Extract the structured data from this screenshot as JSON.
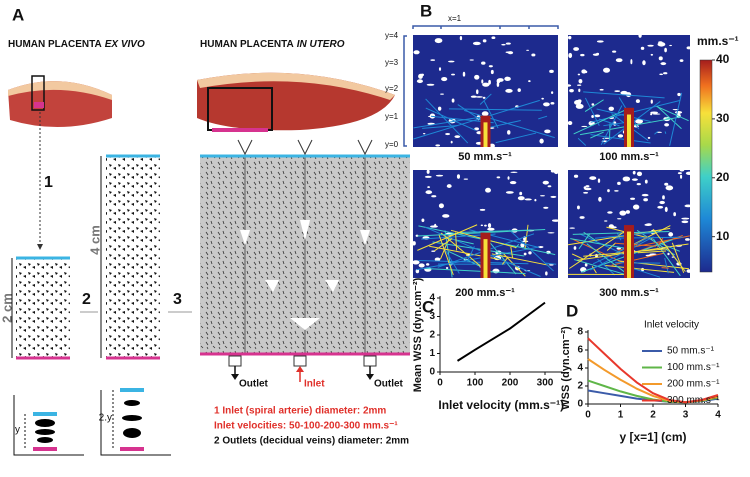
{
  "panel_labels": [
    "A",
    "B",
    "C",
    "D"
  ],
  "panel_a": {
    "title_ex_vivo": {
      "text": "HUMAN PLACENTA",
      "italic": "EX VIVO"
    },
    "title_in_utero": {
      "text": "HUMAN PLACENTA",
      "italic": "IN UTERO"
    },
    "steps": [
      "1",
      "2",
      "3"
    ],
    "scales": [
      "2 cm",
      "4 cm"
    ],
    "sketch_labels": [
      "y",
      "2.y"
    ],
    "ports": [
      "Outlet",
      "Inlet",
      "Outlet"
    ],
    "notes": [
      "1 Inlet (spiral arterie) diameter: 2mm",
      "Inlet velocities: 50-100-200-300 mm.s⁻¹",
      "2 Outlets (decidual veins) diameter: 2mm"
    ]
  },
  "panel_b": {
    "x_label": "x=1",
    "y_labels": [
      "y=4",
      "y=3",
      "y=2",
      "y=1",
      "y=0"
    ],
    "maps": [
      "50 mm.s⁻¹",
      "100 mm.s⁻¹",
      "200 mm.s⁻¹",
      "300 mm.s⁻¹"
    ],
    "colorbar_unit": "mm.s⁻¹",
    "colorbar_lim": [
      4,
      40
    ],
    "colorbar_ticks": [
      10,
      20,
      30,
      40
    ]
  },
  "chart_data": [
    {
      "type": "line",
      "x_label": "Inlet velocity (mm.s⁻¹)",
      "y_label": "Mean WSS (dyn.cm⁻²)",
      "x": [
        50,
        100,
        200,
        300
      ],
      "series": [
        {
          "color": "#000000",
          "values": [
            0.6,
            1.2,
            2.35,
            3.75
          ]
        }
      ],
      "xlim": [
        0,
        350
      ],
      "xticks": [
        0,
        100,
        200,
        300
      ],
      "ylim": [
        0,
        4
      ],
      "yticks": [
        0,
        1,
        2,
        3,
        4
      ]
    },
    {
      "type": "line",
      "x_label": "y [x=1] (cm)",
      "y_label": "WSS (dyn.cm⁻²)",
      "legend_title": "Inlet velocity",
      "x": [
        0,
        0.5,
        1,
        1.5,
        2,
        2.5,
        3,
        3.5,
        4
      ],
      "series": [
        {
          "name": "50 mm.s⁻¹",
          "color": "#3b5ba9",
          "values": [
            1.5,
            1.2,
            0.9,
            0.6,
            0.4,
            0.25,
            0.2,
            0.3,
            0.6
          ]
        },
        {
          "name": "100 mm.s⁻¹",
          "color": "#5fb648",
          "values": [
            2.6,
            2.0,
            1.4,
            0.9,
            0.5,
            0.25,
            0.2,
            0.35,
            0.7
          ]
        },
        {
          "name": "200 mm.s⁻¹",
          "color": "#f39a2b",
          "values": [
            5.0,
            3.8,
            2.7,
            1.7,
            0.9,
            0.35,
            0.2,
            0.4,
            0.8
          ]
        },
        {
          "name": "300 mm.s⁻¹",
          "color": "#e8382c",
          "values": [
            7.3,
            5.6,
            3.9,
            2.4,
            1.2,
            0.45,
            0.2,
            0.45,
            1.0
          ]
        }
      ],
      "xlim": [
        0,
        4
      ],
      "xticks": [
        0,
        1,
        2,
        3,
        4
      ],
      "ylim": [
        0,
        8
      ],
      "yticks": [
        0,
        2,
        4,
        6,
        8
      ]
    }
  ]
}
